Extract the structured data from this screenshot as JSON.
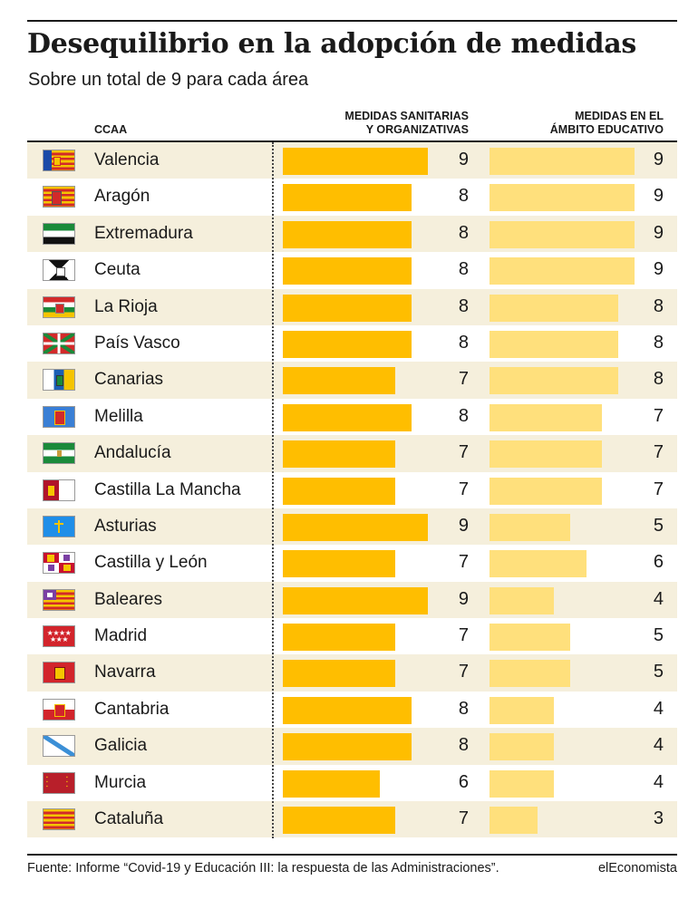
{
  "title": "Desequilibrio en la adopción de medidas",
  "subtitle": "Sobre un total de 9 para cada área",
  "headers": {
    "ccaa": "CCAA",
    "sanitarias_line1": "MEDIDAS SANITARIAS",
    "sanitarias_line2": "Y ORGANIZATIVAS",
    "educativo_line1": "MEDIDAS EN EL",
    "educativo_line2": "ÁMBITO EDUCATIVO"
  },
  "colors": {
    "sanitarias_bar": "#ffbe00",
    "educativo_bar": "#ffe07c",
    "row_band": "#f5efdc"
  },
  "chart_data": {
    "type": "bar",
    "orientation": "horizontal",
    "title": "Desequilibrio en la adopción de medidas",
    "subtitle": "Sobre un total de 9 para cada área",
    "xlim": [
      0,
      9
    ],
    "categories": [
      "Valencia",
      "Aragón",
      "Extremadura",
      "Ceuta",
      "La Rioja",
      "País Vasco",
      "Canarias",
      "Melilla",
      "Andalucía",
      "Castilla La Mancha",
      "Asturias",
      "Castilla y León",
      "Baleares",
      "Madrid",
      "Navarra",
      "Cantabria",
      "Galicia",
      "Murcia",
      "Cataluña"
    ],
    "series": [
      {
        "name": "MEDIDAS SANITARIAS Y ORGANIZATIVAS",
        "values": [
          9,
          8,
          8,
          8,
          8,
          8,
          7,
          8,
          7,
          7,
          9,
          7,
          9,
          7,
          7,
          8,
          8,
          6,
          7
        ]
      },
      {
        "name": "MEDIDAS EN EL ÁMBITO EDUCATIVO",
        "values": [
          9,
          9,
          9,
          9,
          8,
          8,
          8,
          7,
          7,
          7,
          5,
          6,
          4,
          5,
          5,
          4,
          4,
          4,
          3
        ]
      }
    ]
  },
  "flags": [
    "valencia-flag-icon",
    "aragon-flag-icon",
    "extremadura-flag-icon",
    "ceuta-flag-icon",
    "la-rioja-flag-icon",
    "pais-vasco-flag-icon",
    "canarias-flag-icon",
    "melilla-flag-icon",
    "andalucia-flag-icon",
    "castilla-la-mancha-flag-icon",
    "asturias-flag-icon",
    "castilla-y-leon-flag-icon",
    "baleares-flag-icon",
    "madrid-flag-icon",
    "navarra-flag-icon",
    "cantabria-flag-icon",
    "galicia-flag-icon",
    "murcia-flag-icon",
    "cataluna-flag-icon"
  ],
  "footer": {
    "source": "Fuente: Informe “Covid-19 y Educación III: la respuesta de las Administraciones”.",
    "brand": "elEconomista"
  }
}
